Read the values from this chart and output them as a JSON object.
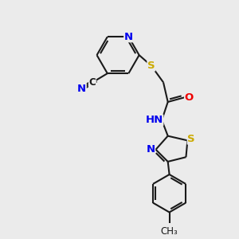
{
  "bg_color": "#ebebeb",
  "bond_color": "#1a1a1a",
  "bond_width": 1.5,
  "atom_colors": {
    "N": "#0000ee",
    "O": "#ee0000",
    "S": "#ccaa00",
    "C": "#1a1a1a",
    "H": "#444444"
  },
  "font_size": 9.5,
  "fig_size": [
    3.0,
    3.0
  ],
  "dpi": 100
}
